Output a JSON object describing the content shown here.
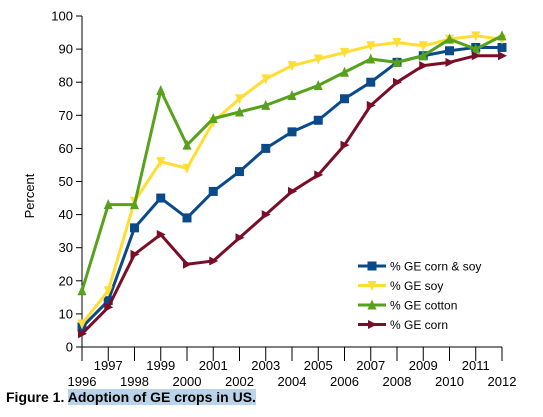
{
  "chart_data": {
    "type": "line",
    "title": "",
    "xlabel": "",
    "ylabel": "Percent",
    "ylim": [
      0,
      100
    ],
    "yticks": [
      0,
      10,
      20,
      30,
      40,
      50,
      60,
      70,
      80,
      90,
      100
    ],
    "xlim": [
      1996,
      2012
    ],
    "xticks_upper": [
      1997,
      1999,
      2001,
      2003,
      2005,
      2007,
      2009,
      2011
    ],
    "xticks_lower": [
      1996,
      1998,
      2000,
      2002,
      2004,
      2006,
      2008,
      2010,
      2012
    ],
    "grid": false,
    "legend_position": "bottom-right",
    "series": [
      {
        "name": "% GE corn & soy",
        "color": "#0b4a8a",
        "marker": "square",
        "x": [
          1996,
          1997,
          1998,
          1999,
          2000,
          2001,
          2002,
          2003,
          2004,
          2005,
          2006,
          2007,
          2008,
          2009,
          2010,
          2011,
          2012
        ],
        "values": [
          6,
          14,
          36,
          45,
          39,
          47,
          53,
          60,
          65,
          68.5,
          75,
          80,
          86,
          88,
          89.5,
          90.5,
          90.5
        ]
      },
      {
        "name": "% GE soy",
        "color": "#ffdd33",
        "marker": "triangle-down",
        "x": [
          1996,
          1997,
          1998,
          1999,
          2000,
          2001,
          2002,
          2003,
          2004,
          2005,
          2006,
          2007,
          2008,
          2009,
          2010,
          2011,
          2012
        ],
        "values": [
          7,
          17,
          44,
          56,
          54,
          68,
          75,
          81,
          85,
          87,
          89,
          91,
          92,
          91,
          93,
          94,
          93
        ]
      },
      {
        "name": "% GE cotton",
        "color": "#57a11c",
        "marker": "triangle-up",
        "x": [
          1996,
          1997,
          1998,
          1999,
          2000,
          2001,
          2002,
          2003,
          2004,
          2005,
          2006,
          2007,
          2008,
          2009,
          2010,
          2011,
          2012
        ],
        "values": [
          17,
          43,
          43,
          77.5,
          61,
          69,
          71,
          73,
          76,
          79,
          83,
          87,
          86,
          88,
          93,
          90,
          94
        ]
      },
      {
        "name": "% GE corn",
        "color": "#7a0d27",
        "marker": "triangle-right",
        "x": [
          1996,
          1997,
          1998,
          1999,
          2000,
          2001,
          2002,
          2003,
          2004,
          2005,
          2006,
          2007,
          2008,
          2009,
          2010,
          2011,
          2012
        ],
        "values": [
          4,
          12,
          28,
          34,
          25,
          26,
          33,
          40,
          47,
          52,
          61,
          73,
          80,
          85,
          86,
          88,
          88
        ]
      }
    ]
  },
  "caption": {
    "prefix": "Figure 1. ",
    "highlighted": "Adoption of GE crops in US."
  }
}
